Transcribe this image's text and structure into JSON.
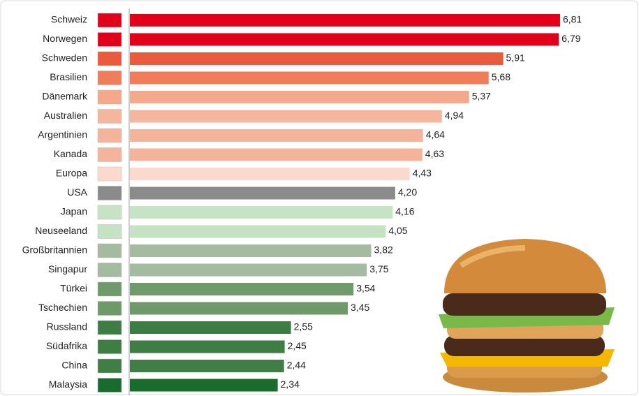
{
  "chart_data": {
    "type": "bar",
    "orientation": "horizontal",
    "categories": [
      "Schweiz",
      "Norwegen",
      "Schweden",
      "Brasilien",
      "Dänemark",
      "Australien",
      "Argentinien",
      "Kanada",
      "Europa",
      "USA",
      "Japan",
      "Neuseeland",
      "Großbritannien",
      "Singapur",
      "Türkei",
      "Tschechien",
      "Russland",
      "Südafrika",
      "China",
      "Malaysia"
    ],
    "values": [
      6.81,
      6.79,
      5.91,
      5.68,
      5.37,
      4.94,
      4.64,
      4.63,
      4.43,
      4.2,
      4.16,
      4.05,
      3.82,
      3.75,
      3.54,
      3.45,
      2.55,
      2.45,
      2.44,
      2.34
    ],
    "value_labels": [
      "6,81",
      "6,79",
      "5,91",
      "5,68",
      "5,37",
      "4,94",
      "4,64",
      "4,63",
      "4,43",
      "4,20",
      "4,16",
      "4,05",
      "3,82",
      "3,75",
      "3,54",
      "3,45",
      "2,55",
      "2,45",
      "2,44",
      "2,34"
    ],
    "colors": [
      "#e3001b",
      "#e3001b",
      "#ea5a3c",
      "#ef7d5a",
      "#f4a98c",
      "#f4b79e",
      "#f3b49b",
      "#f4b49c",
      "#fbd9cd",
      "#8b8b8b",
      "#c6e3c3",
      "#c5e2c2",
      "#a4bb9f",
      "#a3bb9e",
      "#6f9a6b",
      "#6e9a6a",
      "#3d7d43",
      "#3e7e44",
      "#3f7f45",
      "#1a6b2e"
    ]
  }
}
